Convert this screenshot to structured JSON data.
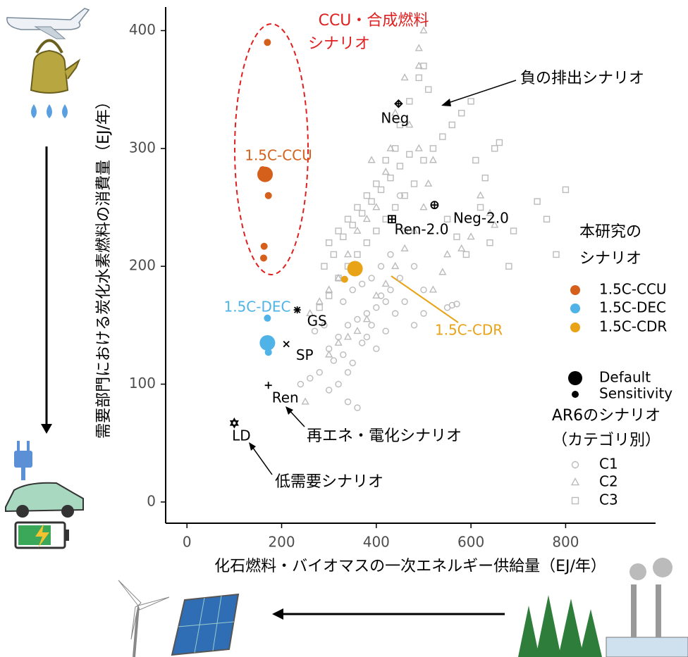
{
  "chart_data": {
    "type": "scatter",
    "xlabel": "化石燃料・バイオマスの一次エネルギー供給量（EJ/年）",
    "ylabel": "需要部門における炭化水素燃料の消費量（EJ/年）",
    "xlim": [
      -45,
      990
    ],
    "ylim": [
      -18,
      420
    ],
    "xticks": [
      0,
      200,
      400,
      600,
      800
    ],
    "yticks": [
      0,
      100,
      200,
      300,
      400
    ],
    "grid": false,
    "study_series": [
      {
        "name": "1.5C-CCU",
        "color": "#d4601c",
        "default": {
          "x": 165,
          "y": 278
        },
        "sensitivity": {
          "x": [
            170,
            160,
            172,
            163,
            162
          ],
          "y": [
            390,
            282,
            260,
            217,
            207
          ]
        }
      },
      {
        "name": "1.5C-DEC",
        "color": "#4fb3e8",
        "default": {
          "x": 170,
          "y": 135
        },
        "sensitivity": {
          "x": [
            170,
            172
          ],
          "y": [
            156,
            127
          ]
        }
      },
      {
        "name": "1.5C-CDR",
        "color": "#e8a317",
        "default": {
          "x": 355,
          "y": 198
        },
        "sensitivity": {
          "x": [
            333
          ],
          "y": [
            189
          ]
        }
      }
    ],
    "study_legend_title": [
      "本研究の",
      "シナリオ"
    ],
    "size_legend": [
      "Default",
      "Sensitivity"
    ],
    "ar6_legend_title": [
      "AR6のシナリオ",
      "（カテゴリ別）"
    ],
    "ar6_series": [
      {
        "name": "C1",
        "marker": "circle",
        "color": "#bbbbbb",
        "x": [
          300,
          320,
          340,
          360,
          380,
          400,
          420,
          310,
          330,
          350,
          370,
          390,
          410,
          430,
          450,
          280,
          260,
          240,
          300,
          320,
          340,
          360,
          380,
          400,
          420,
          440,
          460,
          480,
          500,
          550,
          560,
          570,
          430,
          410,
          390,
          370,
          350,
          330,
          450,
          460,
          480,
          500,
          340,
          290,
          270
        ],
        "y": [
          130,
          140,
          150,
          155,
          160,
          165,
          170,
          120,
          125,
          118,
          135,
          150,
          175,
          180,
          190,
          110,
          105,
          100,
          95,
          100,
          85,
          80,
          140,
          130,
          145,
          160,
          170,
          150,
          160,
          165,
          167,
          168,
          210,
          200,
          190,
          185,
          180,
          170,
          260,
          230,
          200,
          180,
          110,
          150,
          145
        ]
      },
      {
        "name": "C2",
        "marker": "triangle",
        "color": "#bbbbbb",
        "x": [
          250,
          300,
          320,
          340,
          360,
          380,
          400,
          420,
          440,
          460,
          480,
          500,
          510,
          520,
          490,
          470,
          490,
          500,
          490,
          460,
          440,
          430,
          420,
          400,
          380,
          360,
          340,
          320,
          300,
          280,
          260,
          550,
          580,
          620,
          640,
          650,
          600,
          540,
          520,
          390
        ],
        "y": [
          85,
          125,
          135,
          140,
          145,
          155,
          175,
          185,
          200,
          215,
          230,
          250,
          270,
          290,
          300,
          320,
          370,
          400,
          385,
          360,
          330,
          300,
          280,
          250,
          240,
          230,
          210,
          190,
          180,
          170,
          160,
          210,
          215,
          260,
          245,
          235,
          225,
          195,
          180,
          290
        ]
      },
      {
        "name": "C3",
        "marker": "square",
        "color": "#bbbbbb",
        "x": [
          280,
          300,
          320,
          340,
          360,
          380,
          400,
          420,
          440,
          460,
          480,
          500,
          520,
          540,
          560,
          580,
          600,
          450,
          470,
          490,
          500,
          510,
          440,
          420,
          400,
          380,
          360,
          340,
          320,
          300,
          290,
          310,
          330,
          350,
          370,
          390,
          410,
          430,
          450,
          470,
          550,
          570,
          590,
          610,
          630,
          650,
          660,
          640,
          680,
          740,
          760,
          780,
          800,
          690,
          620
        ],
        "y": [
          165,
          175,
          190,
          200,
          210,
          220,
          230,
          240,
          250,
          260,
          270,
          290,
          300,
          310,
          320,
          330,
          340,
          320,
          340,
          360,
          370,
          350,
          300,
          290,
          270,
          260,
          250,
          240,
          230,
          220,
          200,
          210,
          225,
          235,
          245,
          255,
          265,
          275,
          285,
          295,
          240,
          225,
          210,
          290,
          275,
          300,
          305,
          220,
          200,
          255,
          240,
          210,
          265,
          230,
          250
        ]
      }
    ],
    "named_scenarios": [
      {
        "label": "Neg",
        "x": 447,
        "y": 338,
        "marker": "diamond-plus"
      },
      {
        "label": "Neg-2.0",
        "x": 523,
        "y": 252,
        "marker": "circle-plus"
      },
      {
        "label": "Ren-2.0",
        "x": 433,
        "y": 240,
        "marker": "square-plus"
      },
      {
        "label": "GS",
        "x": 233,
        "y": 163,
        "marker": "asterisk"
      },
      {
        "label": "SP",
        "x": 210,
        "y": 134,
        "marker": "cross"
      },
      {
        "label": "Ren",
        "x": 172,
        "y": 99,
        "marker": "plus"
      },
      {
        "label": "LD",
        "x": 100,
        "y": 67,
        "marker": "star"
      }
    ],
    "annotations": {
      "ccu": [
        "CCU・合成燃料",
        "シナリオ"
      ],
      "negative": "負の排出シナリオ",
      "renewable": "再エネ・電化シナリオ",
      "low_demand": "低需要シナリオ"
    }
  }
}
